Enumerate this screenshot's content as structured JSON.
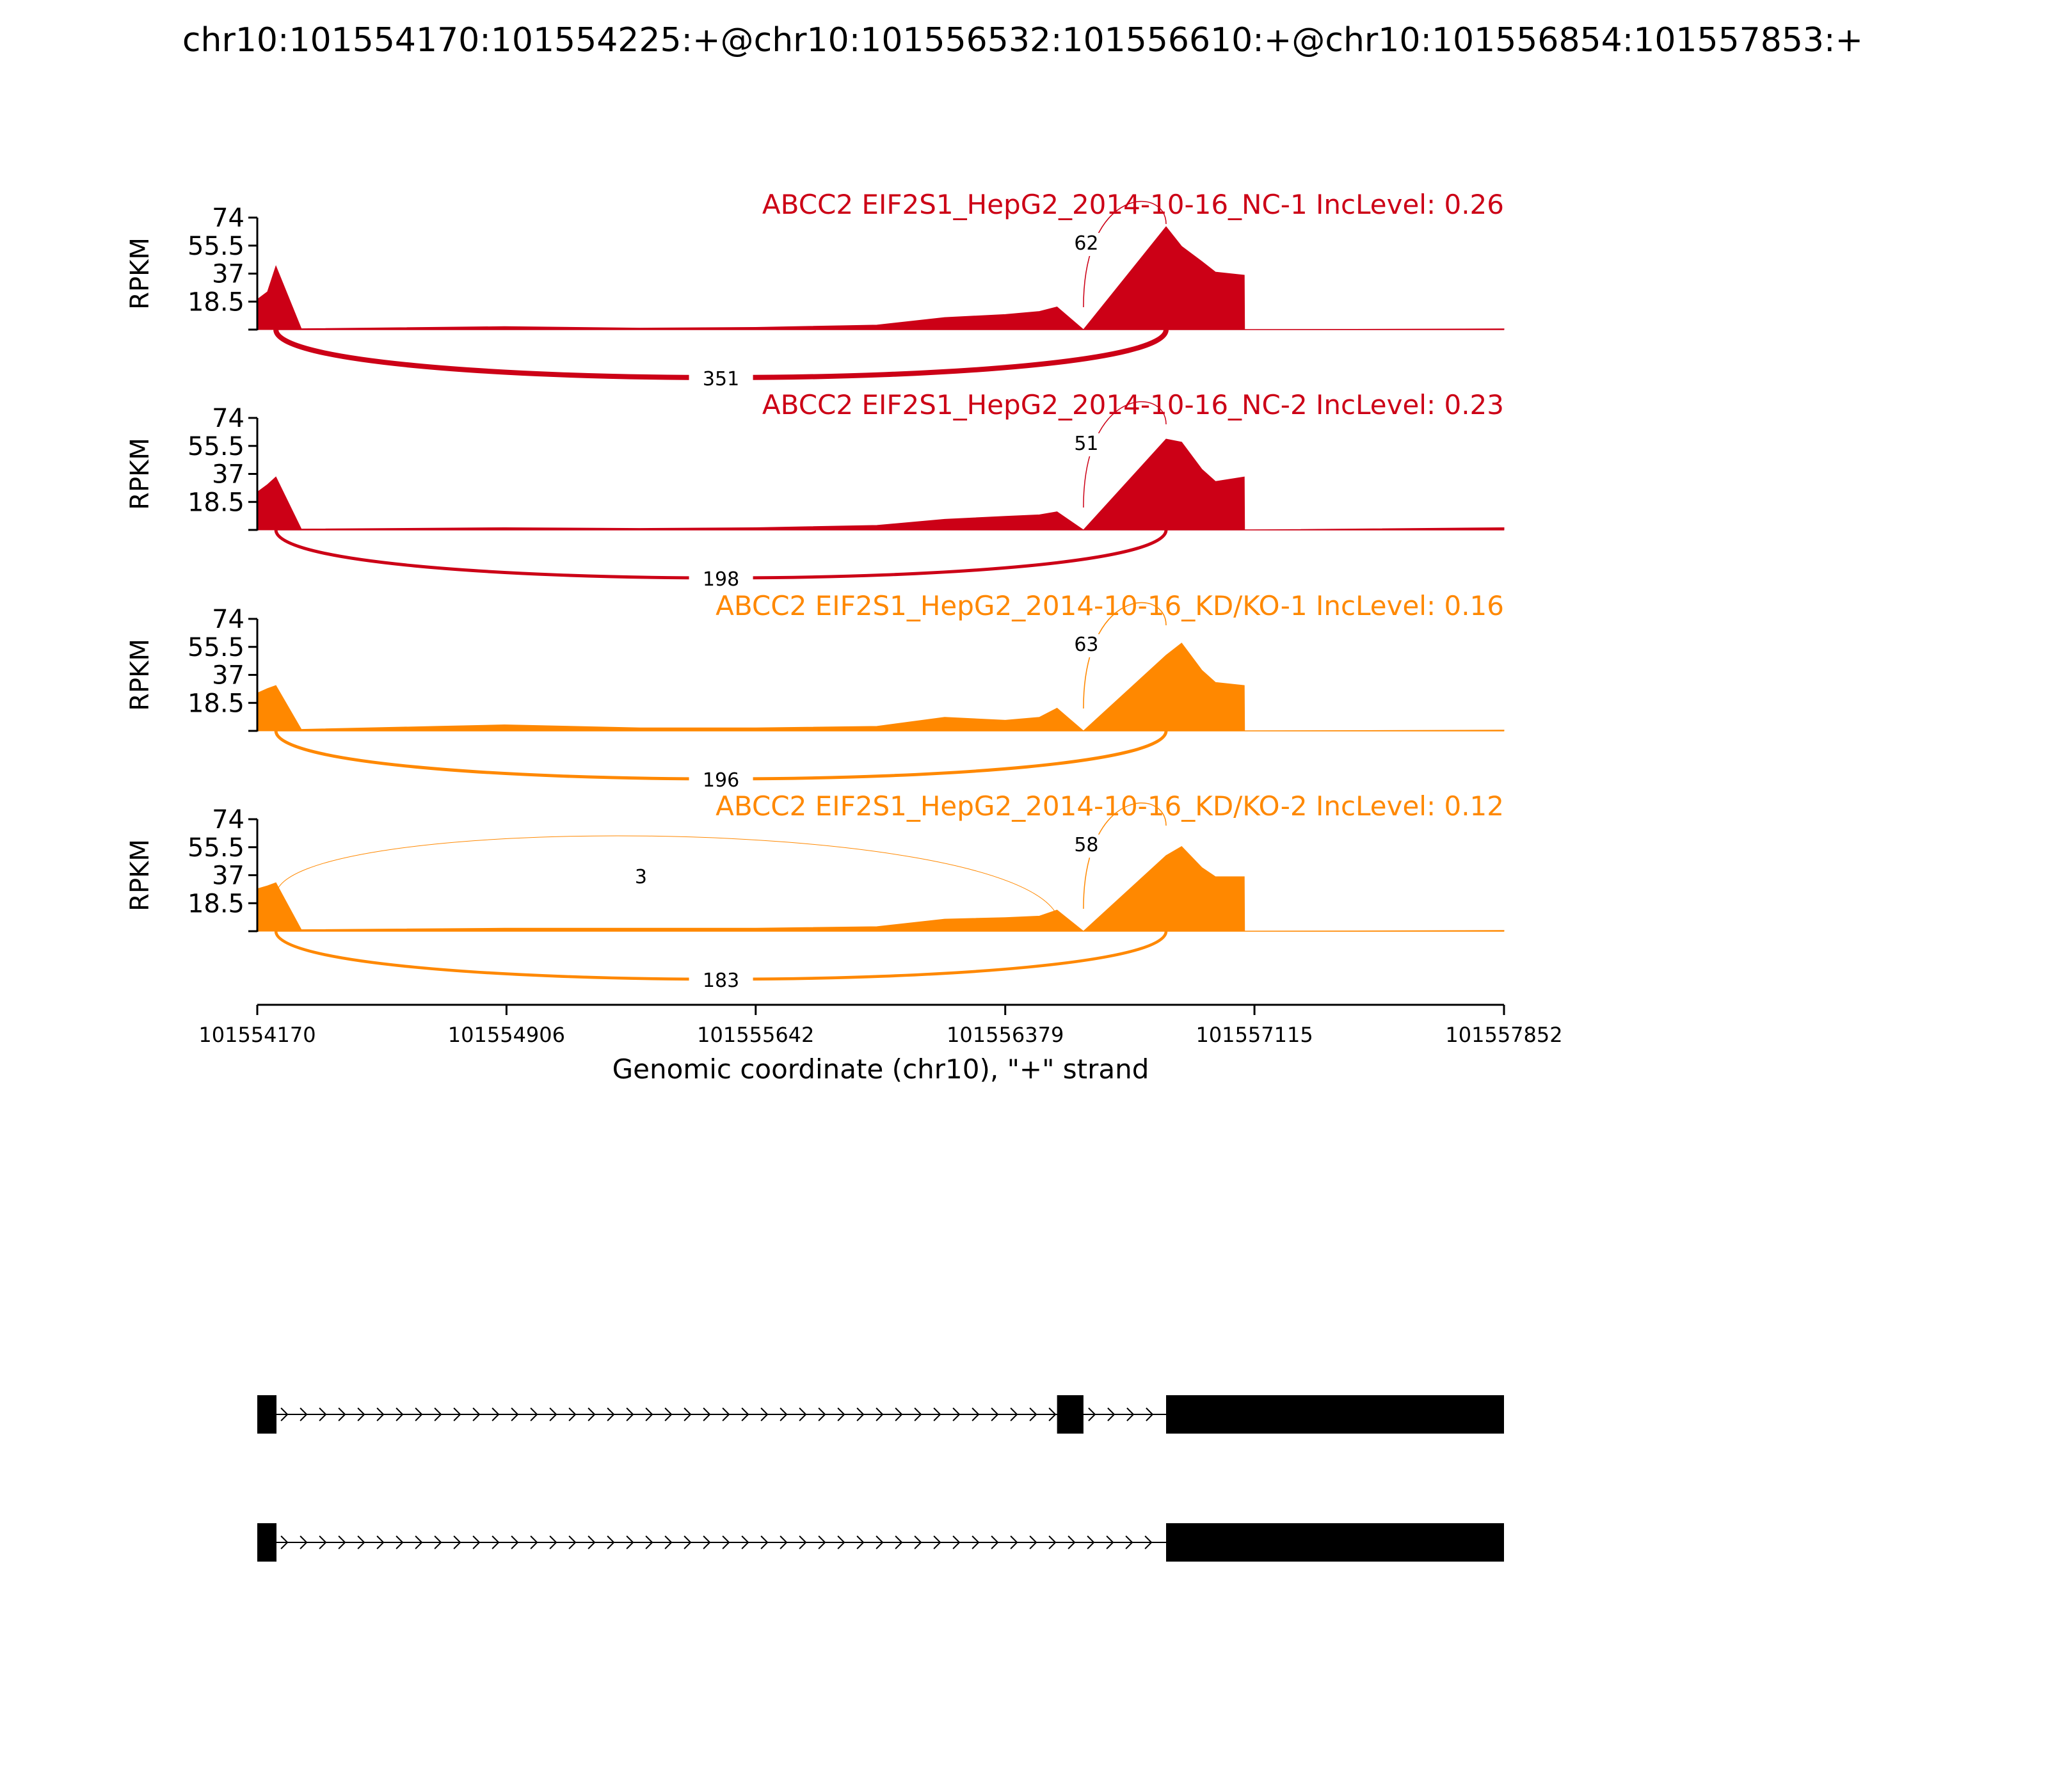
{
  "title": "chr10:101554170:101554225:+@chr10:101556532:101556610:+@chr10:101556854:101557853:+",
  "chart_data": {
    "type": "area",
    "subtype": "sashimi",
    "ylabel": "RPKM",
    "y_ticks": [
      "74",
      "55.5",
      "37",
      "18.5"
    ],
    "ylim": [
      0,
      74
    ],
    "xlim": [
      101554170,
      101557852
    ],
    "x_ticks": [
      "101554170",
      "101554906",
      "101555642",
      "101556379",
      "101557115",
      "101557852"
    ],
    "xlabel": "Genomic coordinate (chr10), \"+\" strand",
    "exons": [
      {
        "start": 101554170,
        "end": 101554225
      },
      {
        "start": 101556532,
        "end": 101556610
      },
      {
        "start": 101556854,
        "end": 101557853
      }
    ],
    "panels": [
      {
        "label": "ABCC2 EIF2S1_HepG2_2014-10-16_NC-1 IncLevel: 0.26",
        "color": "#cc0016",
        "coverage": [
          [
            101554170,
            20
          ],
          [
            101554200,
            25
          ],
          [
            101554225,
            42
          ],
          [
            101554300,
            0.6
          ],
          [
            101554900,
            2
          ],
          [
            101555300,
            1
          ],
          [
            101555642,
            1.5
          ],
          [
            101556000,
            3
          ],
          [
            101556200,
            8
          ],
          [
            101556379,
            10
          ],
          [
            101556480,
            12
          ],
          [
            101556532,
            15
          ],
          [
            101556610,
            0
          ],
          [
            101556854,
            68
          ],
          [
            101556900,
            55
          ],
          [
            101556960,
            45
          ],
          [
            101557000,
            38
          ],
          [
            101557085,
            36
          ],
          [
            101557086,
            0
          ],
          [
            101557852,
            0.5
          ]
        ],
        "junctions": [
          {
            "from": 101554225,
            "to": 101556854,
            "count": 351,
            "side": "below"
          },
          {
            "from": 101556610,
            "to": 101556854,
            "count": 62,
            "side": "above"
          }
        ]
      },
      {
        "label": "ABCC2 EIF2S1_HepG2_2014-10-16_NC-2 IncLevel: 0.23",
        "color": "#cc0016",
        "coverage": [
          [
            101554170,
            25
          ],
          [
            101554200,
            30
          ],
          [
            101554225,
            35
          ],
          [
            101554300,
            0.6
          ],
          [
            101554900,
            1.5
          ],
          [
            101555300,
            1
          ],
          [
            101555642,
            1.5
          ],
          [
            101556000,
            3
          ],
          [
            101556200,
            7
          ],
          [
            101556379,
            9
          ],
          [
            101556480,
            10
          ],
          [
            101556532,
            12
          ],
          [
            101556610,
            0
          ],
          [
            101556854,
            60
          ],
          [
            101556900,
            58
          ],
          [
            101556960,
            40
          ],
          [
            101557000,
            32
          ],
          [
            101557085,
            35
          ],
          [
            101557086,
            0
          ],
          [
            101557852,
            1.5
          ]
        ],
        "junctions": [
          {
            "from": 101554225,
            "to": 101556854,
            "count": 198,
            "side": "below"
          },
          {
            "from": 101556610,
            "to": 101556854,
            "count": 51,
            "side": "above"
          }
        ]
      },
      {
        "label": "ABCC2 EIF2S1_HepG2_2014-10-16_KD/KO-1 IncLevel: 0.16",
        "color": "#ff8800",
        "coverage": [
          [
            101554170,
            25
          ],
          [
            101554200,
            28
          ],
          [
            101554225,
            30
          ],
          [
            101554300,
            1
          ],
          [
            101554700,
            3
          ],
          [
            101554900,
            4
          ],
          [
            101555300,
            2
          ],
          [
            101555642,
            2
          ],
          [
            101556000,
            3
          ],
          [
            101556200,
            9
          ],
          [
            101556379,
            7
          ],
          [
            101556480,
            9
          ],
          [
            101556532,
            15
          ],
          [
            101556610,
            0
          ],
          [
            101556854,
            50
          ],
          [
            101556900,
            58
          ],
          [
            101556960,
            40
          ],
          [
            101557000,
            32
          ],
          [
            101557085,
            30
          ],
          [
            101557086,
            0
          ],
          [
            101557852,
            0.5
          ]
        ],
        "junctions": [
          {
            "from": 101554225,
            "to": 101556854,
            "count": 196,
            "side": "below"
          },
          {
            "from": 101556610,
            "to": 101556854,
            "count": 63,
            "side": "above"
          }
        ]
      },
      {
        "label": "ABCC2 EIF2S1_HepG2_2014-10-16_KD/KO-2 IncLevel: 0.12",
        "color": "#ff8800",
        "coverage": [
          [
            101554170,
            28
          ],
          [
            101554200,
            30
          ],
          [
            101554225,
            32
          ],
          [
            101554300,
            1
          ],
          [
            101554900,
            2
          ],
          [
            101555300,
            2
          ],
          [
            101555642,
            2
          ],
          [
            101556000,
            3
          ],
          [
            101556200,
            8
          ],
          [
            101556379,
            9
          ],
          [
            101556480,
            10
          ],
          [
            101556532,
            14
          ],
          [
            101556610,
            0
          ],
          [
            101556854,
            50
          ],
          [
            101556900,
            56
          ],
          [
            101556960,
            42
          ],
          [
            101557000,
            36
          ],
          [
            101557085,
            36
          ],
          [
            101557086,
            0
          ],
          [
            101557852,
            0.5
          ]
        ],
        "junctions": [
          {
            "from": 101554225,
            "to": 101556854,
            "count": 183,
            "side": "below"
          },
          {
            "from": 101556610,
            "to": 101556854,
            "count": 58,
            "side": "above"
          },
          {
            "from": 101554225,
            "to": 101556532,
            "count": 3,
            "side": "above"
          }
        ]
      }
    ],
    "transcripts": [
      {
        "exons": [
          [
            101554170,
            101554225
          ],
          [
            101556532,
            101556610
          ],
          [
            101556854,
            101557852
          ]
        ]
      },
      {
        "exons": [
          [
            101554170,
            101554225
          ],
          [
            101556854,
            101557852
          ]
        ]
      }
    ]
  }
}
